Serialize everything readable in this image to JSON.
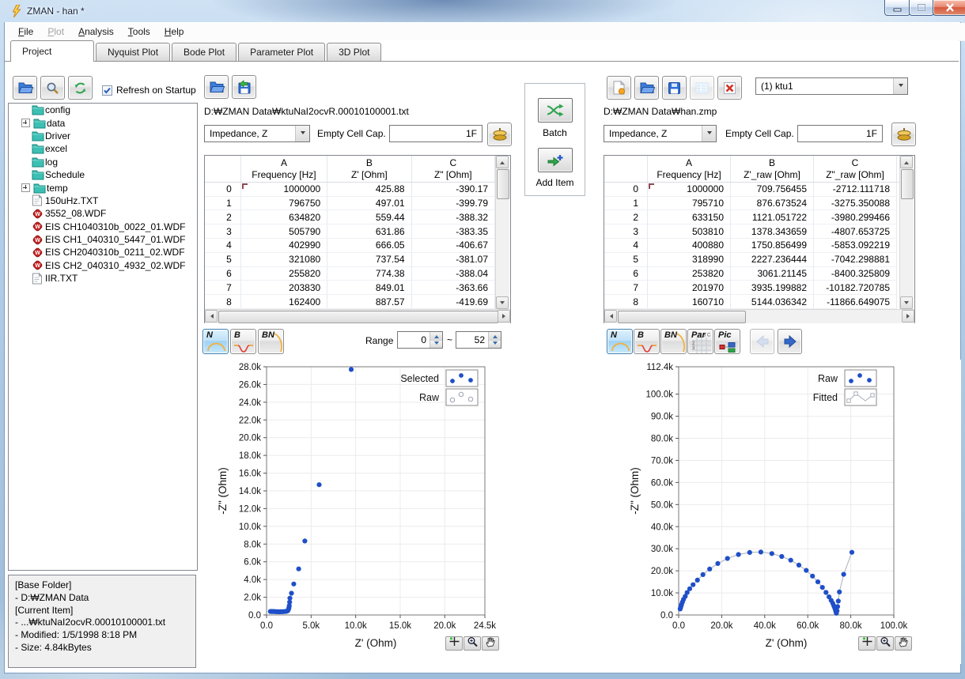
{
  "window": {
    "title": "ZMAN - han *"
  },
  "menu": {
    "items": [
      {
        "label": "File",
        "enabled": true
      },
      {
        "label": "Plot",
        "enabled": false
      },
      {
        "label": "Analysis",
        "enabled": true
      },
      {
        "label": "Tools",
        "enabled": true
      },
      {
        "label": "Help",
        "enabled": true
      }
    ]
  },
  "tabs": [
    {
      "label": "Project",
      "active": true
    },
    {
      "label": "Nyquist Plot",
      "active": false
    },
    {
      "label": "Bode Plot",
      "active": false
    },
    {
      "label": "Parameter Plot",
      "active": false
    },
    {
      "label": "3D Plot",
      "active": false
    }
  ],
  "left_panel": {
    "refresh_on_startup_label": "Refresh on Startup",
    "refresh_on_startup_checked": true,
    "tree": [
      {
        "icon": "folder",
        "label": "config",
        "expandable": false
      },
      {
        "icon": "folder",
        "label": "data",
        "expandable": true
      },
      {
        "icon": "folder",
        "label": "Driver",
        "expandable": false
      },
      {
        "icon": "folder",
        "label": "excel",
        "expandable": false
      },
      {
        "icon": "folder",
        "label": "log",
        "expandable": false
      },
      {
        "icon": "folder",
        "label": "Schedule",
        "expandable": false
      },
      {
        "icon": "folder",
        "label": "temp",
        "expandable": true
      },
      {
        "icon": "txt",
        "label": "150uHz.TXT",
        "expandable": false
      },
      {
        "icon": "wdf",
        "label": "3552_08.WDF",
        "expandable": false
      },
      {
        "icon": "wdf",
        "label": "EIS CH1040310b_0022_01.WDF",
        "expandable": false
      },
      {
        "icon": "wdf",
        "label": "EIS CH1_040310_5447_01.WDF",
        "expandable": false
      },
      {
        "icon": "wdf",
        "label": "EIS CH2040310b_0211_02.WDF",
        "expandable": false
      },
      {
        "icon": "wdf",
        "label": "EIS CH2_040310_4932_02.WDF",
        "expandable": false
      },
      {
        "icon": "txt",
        "label": "IIR.TXT",
        "expandable": false
      }
    ],
    "info_lines": [
      "[Base Folder]",
      "- D:₩ZMAN Data",
      "[Current Item]",
      "- ...₩ktuNaI2ocvR.00010100001.txt",
      "- Modified: 1/5/1998 8:18 PM",
      "- Size: 4.84kBytes"
    ]
  },
  "middle_panel": {
    "path": "D:₩ZMAN Data₩ktuNaI2ocvR.00010100001.txt",
    "impedance_value": "Impedance, Z",
    "empty_cell_cap_label": "Empty Cell Cap.",
    "empty_cell_cap_value": "1F",
    "table": {
      "headers": [
        [
          "A",
          "Frequency [Hz]"
        ],
        [
          "B",
          "Z' [Ohm]"
        ],
        [
          "C",
          "Z\" [Ohm]"
        ]
      ],
      "rows": [
        [
          "0",
          "1000000",
          "425.88",
          "-390.17"
        ],
        [
          "1",
          "796750",
          "497.01",
          "-399.79"
        ],
        [
          "2",
          "634820",
          "559.44",
          "-388.32"
        ],
        [
          "3",
          "505790",
          "631.86",
          "-383.35"
        ],
        [
          "4",
          "402990",
          "666.05",
          "-406.67"
        ],
        [
          "5",
          "321080",
          "737.54",
          "-381.07"
        ],
        [
          "6",
          "255820",
          "774.38",
          "-388.04"
        ],
        [
          "7",
          "203830",
          "849.01",
          "-363.66"
        ],
        [
          "8",
          "162400",
          "887.57",
          "-419.69"
        ]
      ]
    },
    "view_buttons": [
      {
        "label": "N",
        "active": true
      },
      {
        "label": "B",
        "active": false
      },
      {
        "label": "BN",
        "active": false
      }
    ],
    "range": {
      "label": "Range",
      "from": "0",
      "separator": "~",
      "to": "52"
    }
  },
  "center_panel": {
    "batch_label": "Batch",
    "add_item_label": "Add Item"
  },
  "right_panel": {
    "dataset_value": "(1) ktu1",
    "path": "D:₩ZMAN Data₩han.zmp",
    "impedance_value": "Impedance, Z",
    "empty_cell_cap_label": "Empty Cell Cap.",
    "empty_cell_cap_value": "1F",
    "table": {
      "headers": [
        [
          "A",
          "Frequency [Hz]"
        ],
        [
          "B",
          "Z'_raw [Ohm]"
        ],
        [
          "C",
          "Z\"_raw [Ohm]"
        ]
      ],
      "rows": [
        [
          "0",
          "1000000",
          "709.756455",
          "-2712.111718"
        ],
        [
          "1",
          "795710",
          "876.673524",
          "-3275.350088"
        ],
        [
          "2",
          "633150",
          "1121.051722",
          "-3980.299466"
        ],
        [
          "3",
          "503810",
          "1378.343659",
          "-4807.653725"
        ],
        [
          "4",
          "400880",
          "1750.856499",
          "-5853.092219"
        ],
        [
          "5",
          "318990",
          "2227.236444",
          "-7042.298881"
        ],
        [
          "6",
          "253820",
          "3061.21145",
          "-8400.325809"
        ],
        [
          "7",
          "201970",
          "3935.199882",
          "-10182.720785"
        ],
        [
          "8",
          "160710",
          "5144.036342",
          "-11866.649075"
        ]
      ]
    },
    "view_buttons": [
      {
        "label": "N",
        "active": true
      },
      {
        "label": "B",
        "active": false
      },
      {
        "label": "BN",
        "active": false
      },
      {
        "label": "Par",
        "active": false
      },
      {
        "label": "Pic",
        "active": false
      }
    ]
  },
  "chart_data": [
    {
      "name": "selected-data-nyquist",
      "type": "scatter",
      "xlabel": "Z' (Ohm)",
      "ylabel": "-Z\" (Ohm)",
      "xlim": [
        0,
        24500
      ],
      "ylim": [
        0,
        28000
      ],
      "xticks": [
        0,
        5000,
        10000,
        15000,
        20000,
        24500
      ],
      "yticks": [
        0,
        2000,
        4000,
        6000,
        8000,
        10000,
        12000,
        14000,
        16000,
        18000,
        20000,
        22000,
        24000,
        26000,
        28000
      ],
      "grid": true,
      "legend_position": "top-right",
      "legend": [
        {
          "label": "Selected",
          "marker": "dots-filled"
        },
        {
          "label": "Raw",
          "marker": "dots-open"
        }
      ],
      "series": [
        {
          "name": "Selected",
          "color": "#1f4fc8",
          "marker": "dot",
          "line": false,
          "points": [
            [
              430,
              390
            ],
            [
              520,
              400
            ],
            [
              610,
              385
            ],
            [
              700,
              390
            ],
            [
              800,
              395
            ],
            [
              900,
              380
            ],
            [
              1000,
              375
            ],
            [
              1120,
              370
            ],
            [
              1250,
              365
            ],
            [
              1400,
              360
            ],
            [
              1550,
              365
            ],
            [
              1700,
              370
            ],
            [
              1850,
              375
            ],
            [
              2000,
              385
            ],
            [
              2150,
              400
            ],
            [
              2300,
              430
            ],
            [
              2400,
              500
            ],
            [
              2460,
              620
            ],
            [
              2510,
              800
            ],
            [
              2550,
              1050
            ],
            [
              2590,
              1450
            ],
            [
              2620,
              1900
            ],
            [
              2800,
              2450
            ],
            [
              3050,
              3500
            ],
            [
              3600,
              5200
            ],
            [
              4300,
              8350
            ],
            [
              5900,
              14700
            ],
            [
              9500,
              27700
            ]
          ]
        }
      ]
    },
    {
      "name": "raw-vs-fitted-nyquist",
      "type": "scatter",
      "xlabel": "Z' (Ohm)",
      "ylabel": "-Z\" (Ohm)",
      "xlim": [
        0,
        100000
      ],
      "ylim": [
        0,
        112400
      ],
      "xticks": [
        0,
        20000,
        40000,
        60000,
        80000,
        100000
      ],
      "yticks": [
        0,
        10000,
        20000,
        30000,
        40000,
        50000,
        60000,
        70000,
        80000,
        90000,
        100000,
        112400
      ],
      "grid": true,
      "legend_position": "top-right",
      "legend": [
        {
          "label": "Raw",
          "marker": "dots-filled"
        },
        {
          "label": "Fitted",
          "marker": "line-squares"
        }
      ],
      "series": [
        {
          "name": "Fitted",
          "color": "#a8aebc",
          "marker": "none",
          "line": true,
          "same_points_as": "Raw"
        },
        {
          "name": "Raw",
          "color": "#1f4fc8",
          "marker": "dot",
          "line": false,
          "points": [
            [
              709,
              2712
            ],
            [
              877,
              3275
            ],
            [
              1121,
              3980
            ],
            [
              1378,
              4808
            ],
            [
              1751,
              5853
            ],
            [
              2227,
              7042
            ],
            [
              3061,
              8400
            ],
            [
              3935,
              10183
            ],
            [
              5144,
              11867
            ],
            [
              6700,
              13700
            ],
            [
              8700,
              15800
            ],
            [
              11300,
              18300
            ],
            [
              14400,
              20800
            ],
            [
              18200,
              23300
            ],
            [
              22700,
              25600
            ],
            [
              27800,
              27400
            ],
            [
              33000,
              28300
            ],
            [
              38200,
              28500
            ],
            [
              43300,
              27800
            ],
            [
              47900,
              26500
            ],
            [
              52100,
              24800
            ],
            [
              55900,
              22600
            ],
            [
              59300,
              20200
            ],
            [
              62200,
              17600
            ],
            [
              64700,
              15000
            ],
            [
              66800,
              12500
            ],
            [
              68500,
              10200
            ],
            [
              69900,
              8200
            ],
            [
              70900,
              6600
            ],
            [
              71600,
              5300
            ],
            [
              72100,
              4200
            ],
            [
              72500,
              3300
            ],
            [
              72800,
              2500
            ],
            [
              73000,
              1800
            ],
            [
              73200,
              1200
            ],
            [
              73300,
              800
            ],
            [
              73600,
              1900
            ],
            [
              73900,
              3800
            ],
            [
              74200,
              6300
            ],
            [
              74700,
              10400
            ],
            [
              76700,
              18400
            ],
            [
              80500,
              28400
            ]
          ]
        }
      ]
    }
  ]
}
